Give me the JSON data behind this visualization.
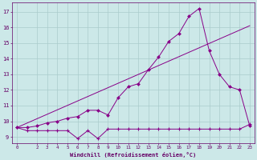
{
  "background_color": "#cce8e8",
  "grid_color": "#aacccc",
  "line_color": "#880088",
  "xlabel": "Windchill (Refroidissement éolien,°C)",
  "ylabel_ticks": [
    9,
    10,
    11,
    12,
    13,
    14,
    15,
    16,
    17
  ],
  "xlim": [
    -0.5,
    23.5
  ],
  "ylim": [
    8.6,
    17.6
  ],
  "xticks": [
    0,
    2,
    3,
    4,
    5,
    6,
    7,
    8,
    9,
    10,
    11,
    12,
    13,
    14,
    15,
    16,
    17,
    18,
    19,
    20,
    21,
    22,
    23
  ],
  "line1_x": [
    0,
    1,
    2,
    3,
    4,
    5,
    6,
    7,
    8,
    9,
    10,
    11,
    12,
    13,
    14,
    15,
    16,
    17,
    18,
    19,
    20,
    21,
    22,
    23
  ],
  "line1_y": [
    9.6,
    9.4,
    9.4,
    9.4,
    9.4,
    9.4,
    8.9,
    9.4,
    8.9,
    9.5,
    9.5,
    9.5,
    9.5,
    9.5,
    9.5,
    9.5,
    9.5,
    9.5,
    9.5,
    9.5,
    9.5,
    9.5,
    9.5,
    9.8
  ],
  "line2_x": [
    0,
    23
  ],
  "line2_y": [
    9.6,
    16.1
  ],
  "line3_x": [
    0,
    1,
    2,
    3,
    4,
    5,
    6,
    7,
    8,
    9,
    10,
    11,
    12,
    13,
    14,
    15,
    16,
    17,
    18,
    19,
    20,
    21,
    22,
    23
  ],
  "line3_y": [
    9.6,
    9.6,
    9.7,
    9.9,
    10.0,
    10.2,
    10.3,
    10.7,
    10.7,
    10.4,
    11.5,
    12.2,
    12.4,
    13.3,
    14.1,
    15.1,
    15.6,
    16.7,
    17.2,
    14.5,
    13.0,
    12.2,
    12.0,
    9.7
  ],
  "font_color": "#660066"
}
